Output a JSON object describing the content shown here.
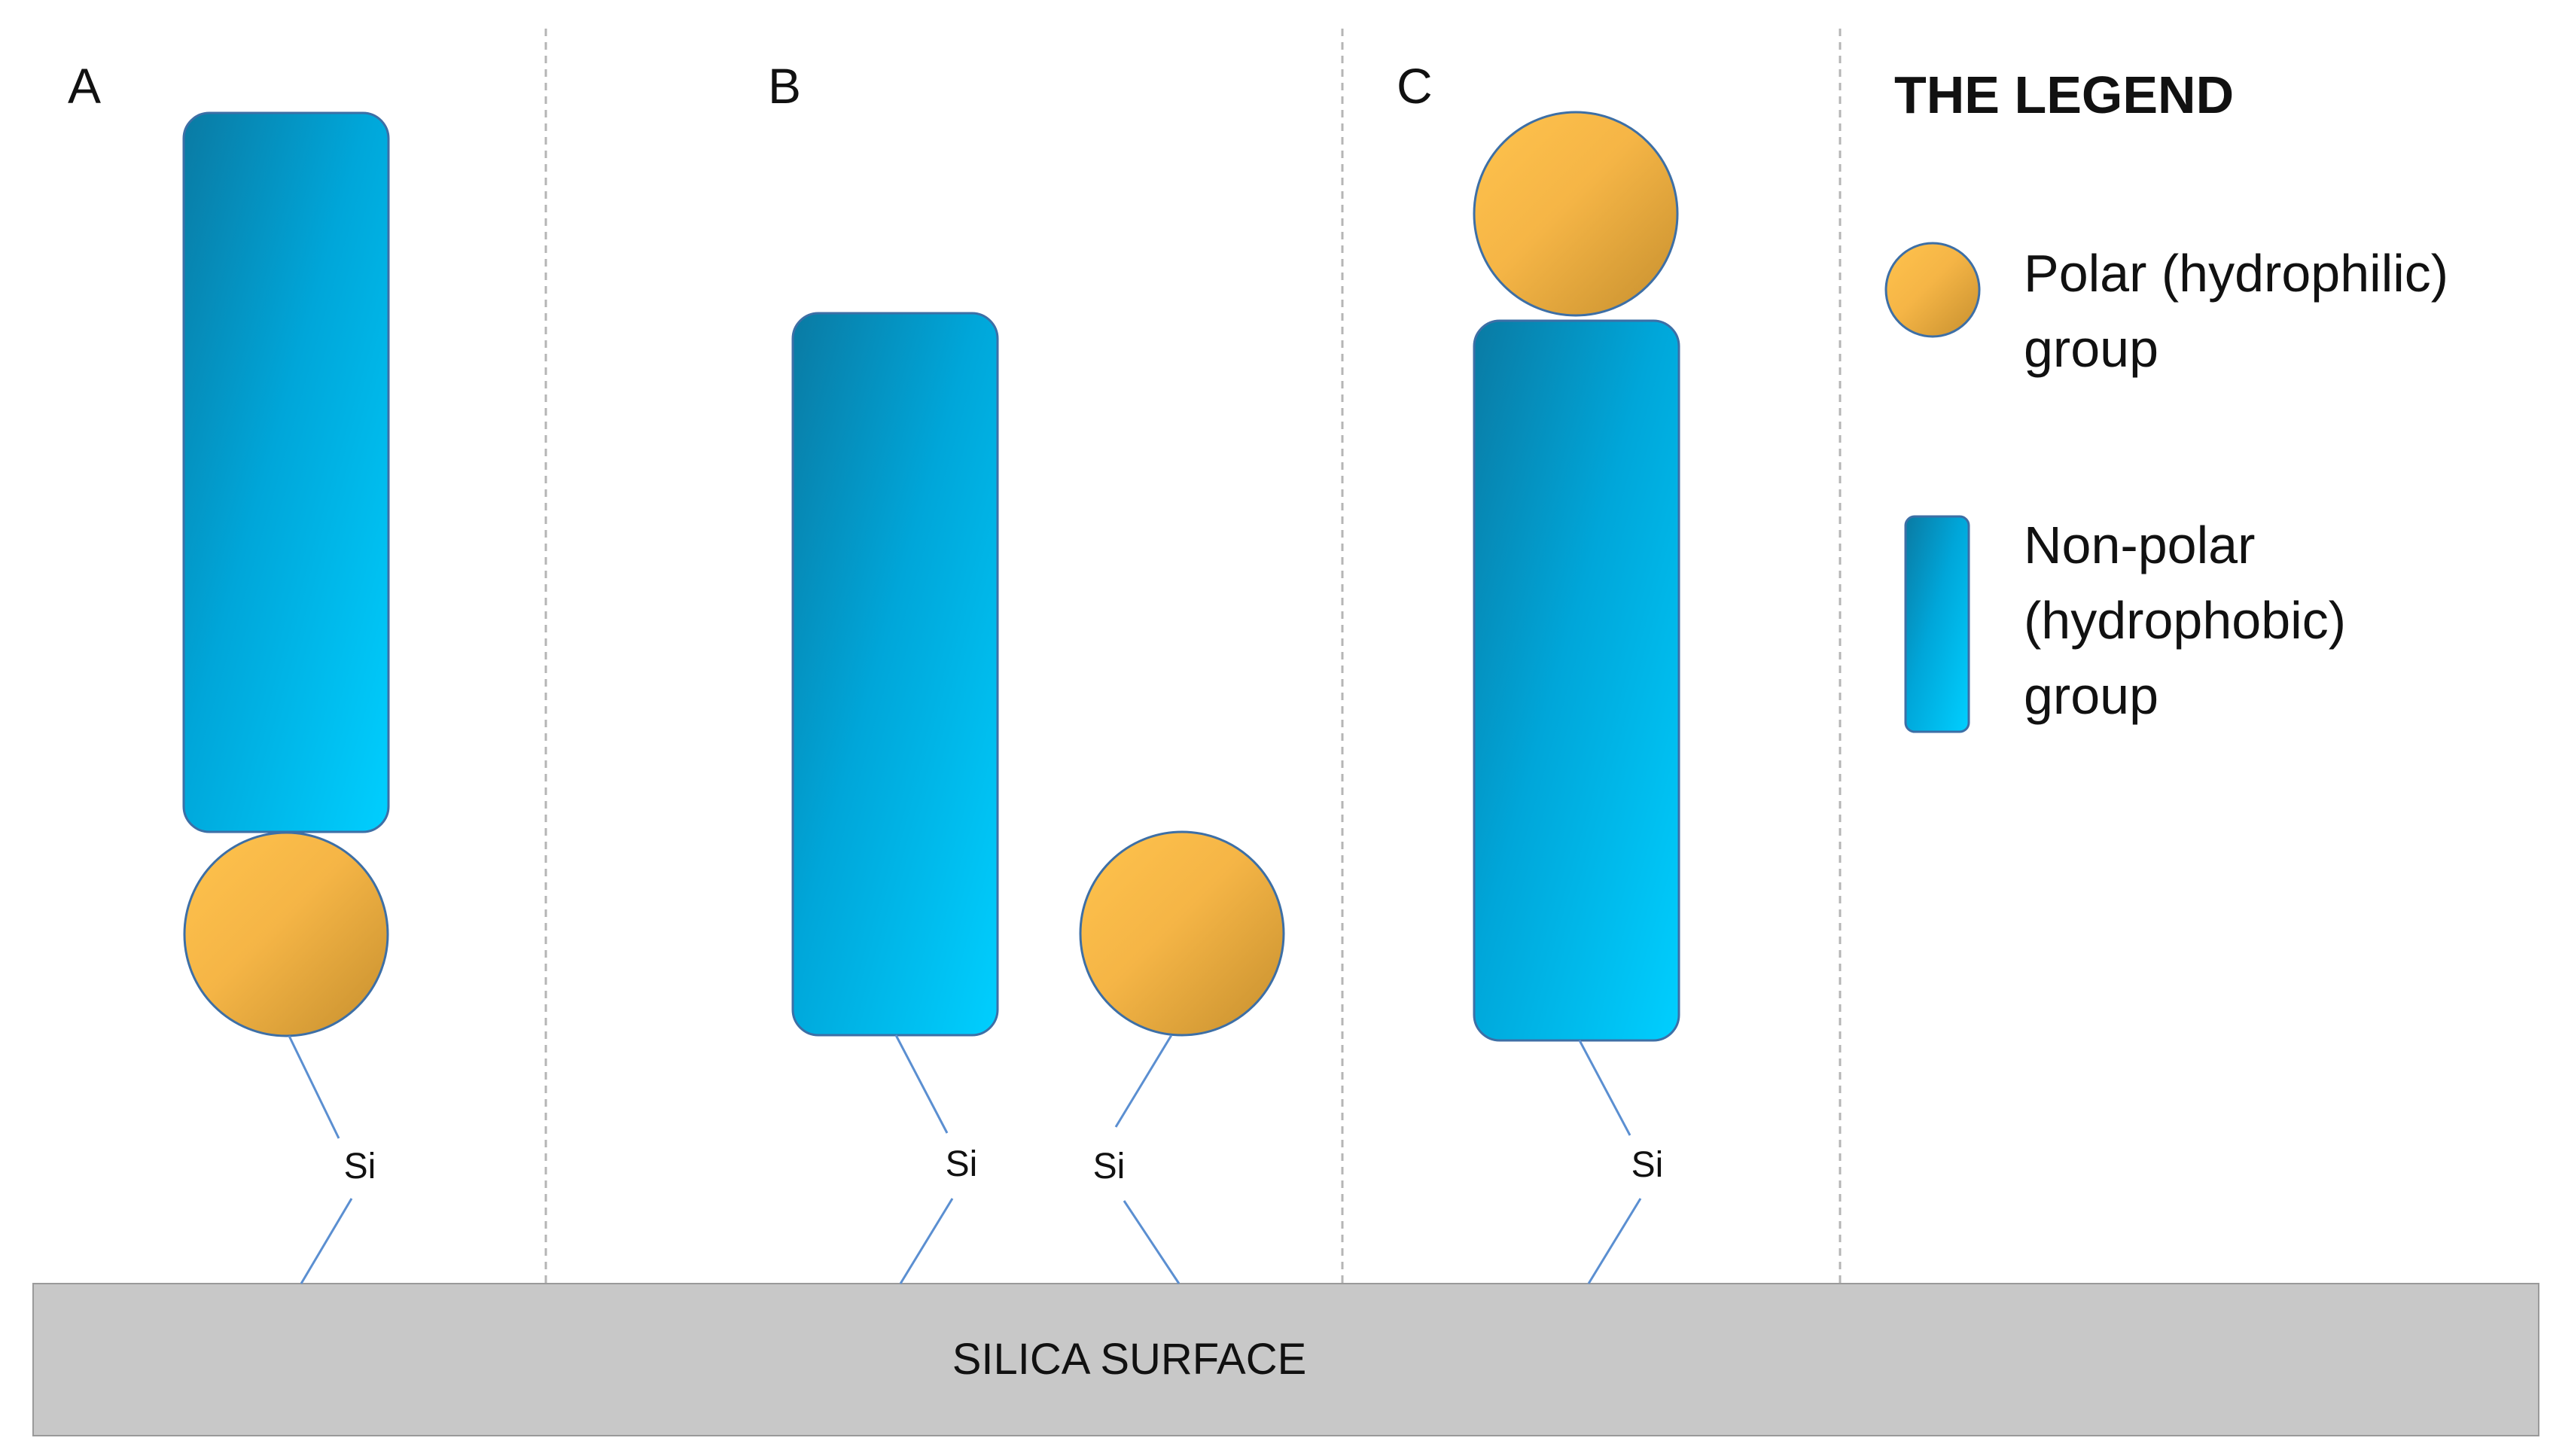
{
  "panels": [
    {
      "label": "A"
    },
    {
      "label": "B"
    },
    {
      "label": "C"
    }
  ],
  "si_label": "Si",
  "surface": {
    "label": "SILICA SURFACE",
    "color": "#c8c8c8"
  },
  "legend": {
    "title": "THE LEGEND",
    "polar": {
      "line1": "Polar (hydrophilic)",
      "line2": "group"
    },
    "nonpolar": {
      "line1": "Non-polar",
      "line2": "(hydrophobic)",
      "line3": "group"
    }
  },
  "colors": {
    "polar_light": "#ffc34d",
    "polar_dark": "#c68f2e",
    "nonpolar_light": "#00cfff",
    "nonpolar_dark": "#0a7aa3",
    "outline": "#3d6fa6",
    "bond": "#5b8fd1",
    "divider": "#b5b5b5"
  }
}
